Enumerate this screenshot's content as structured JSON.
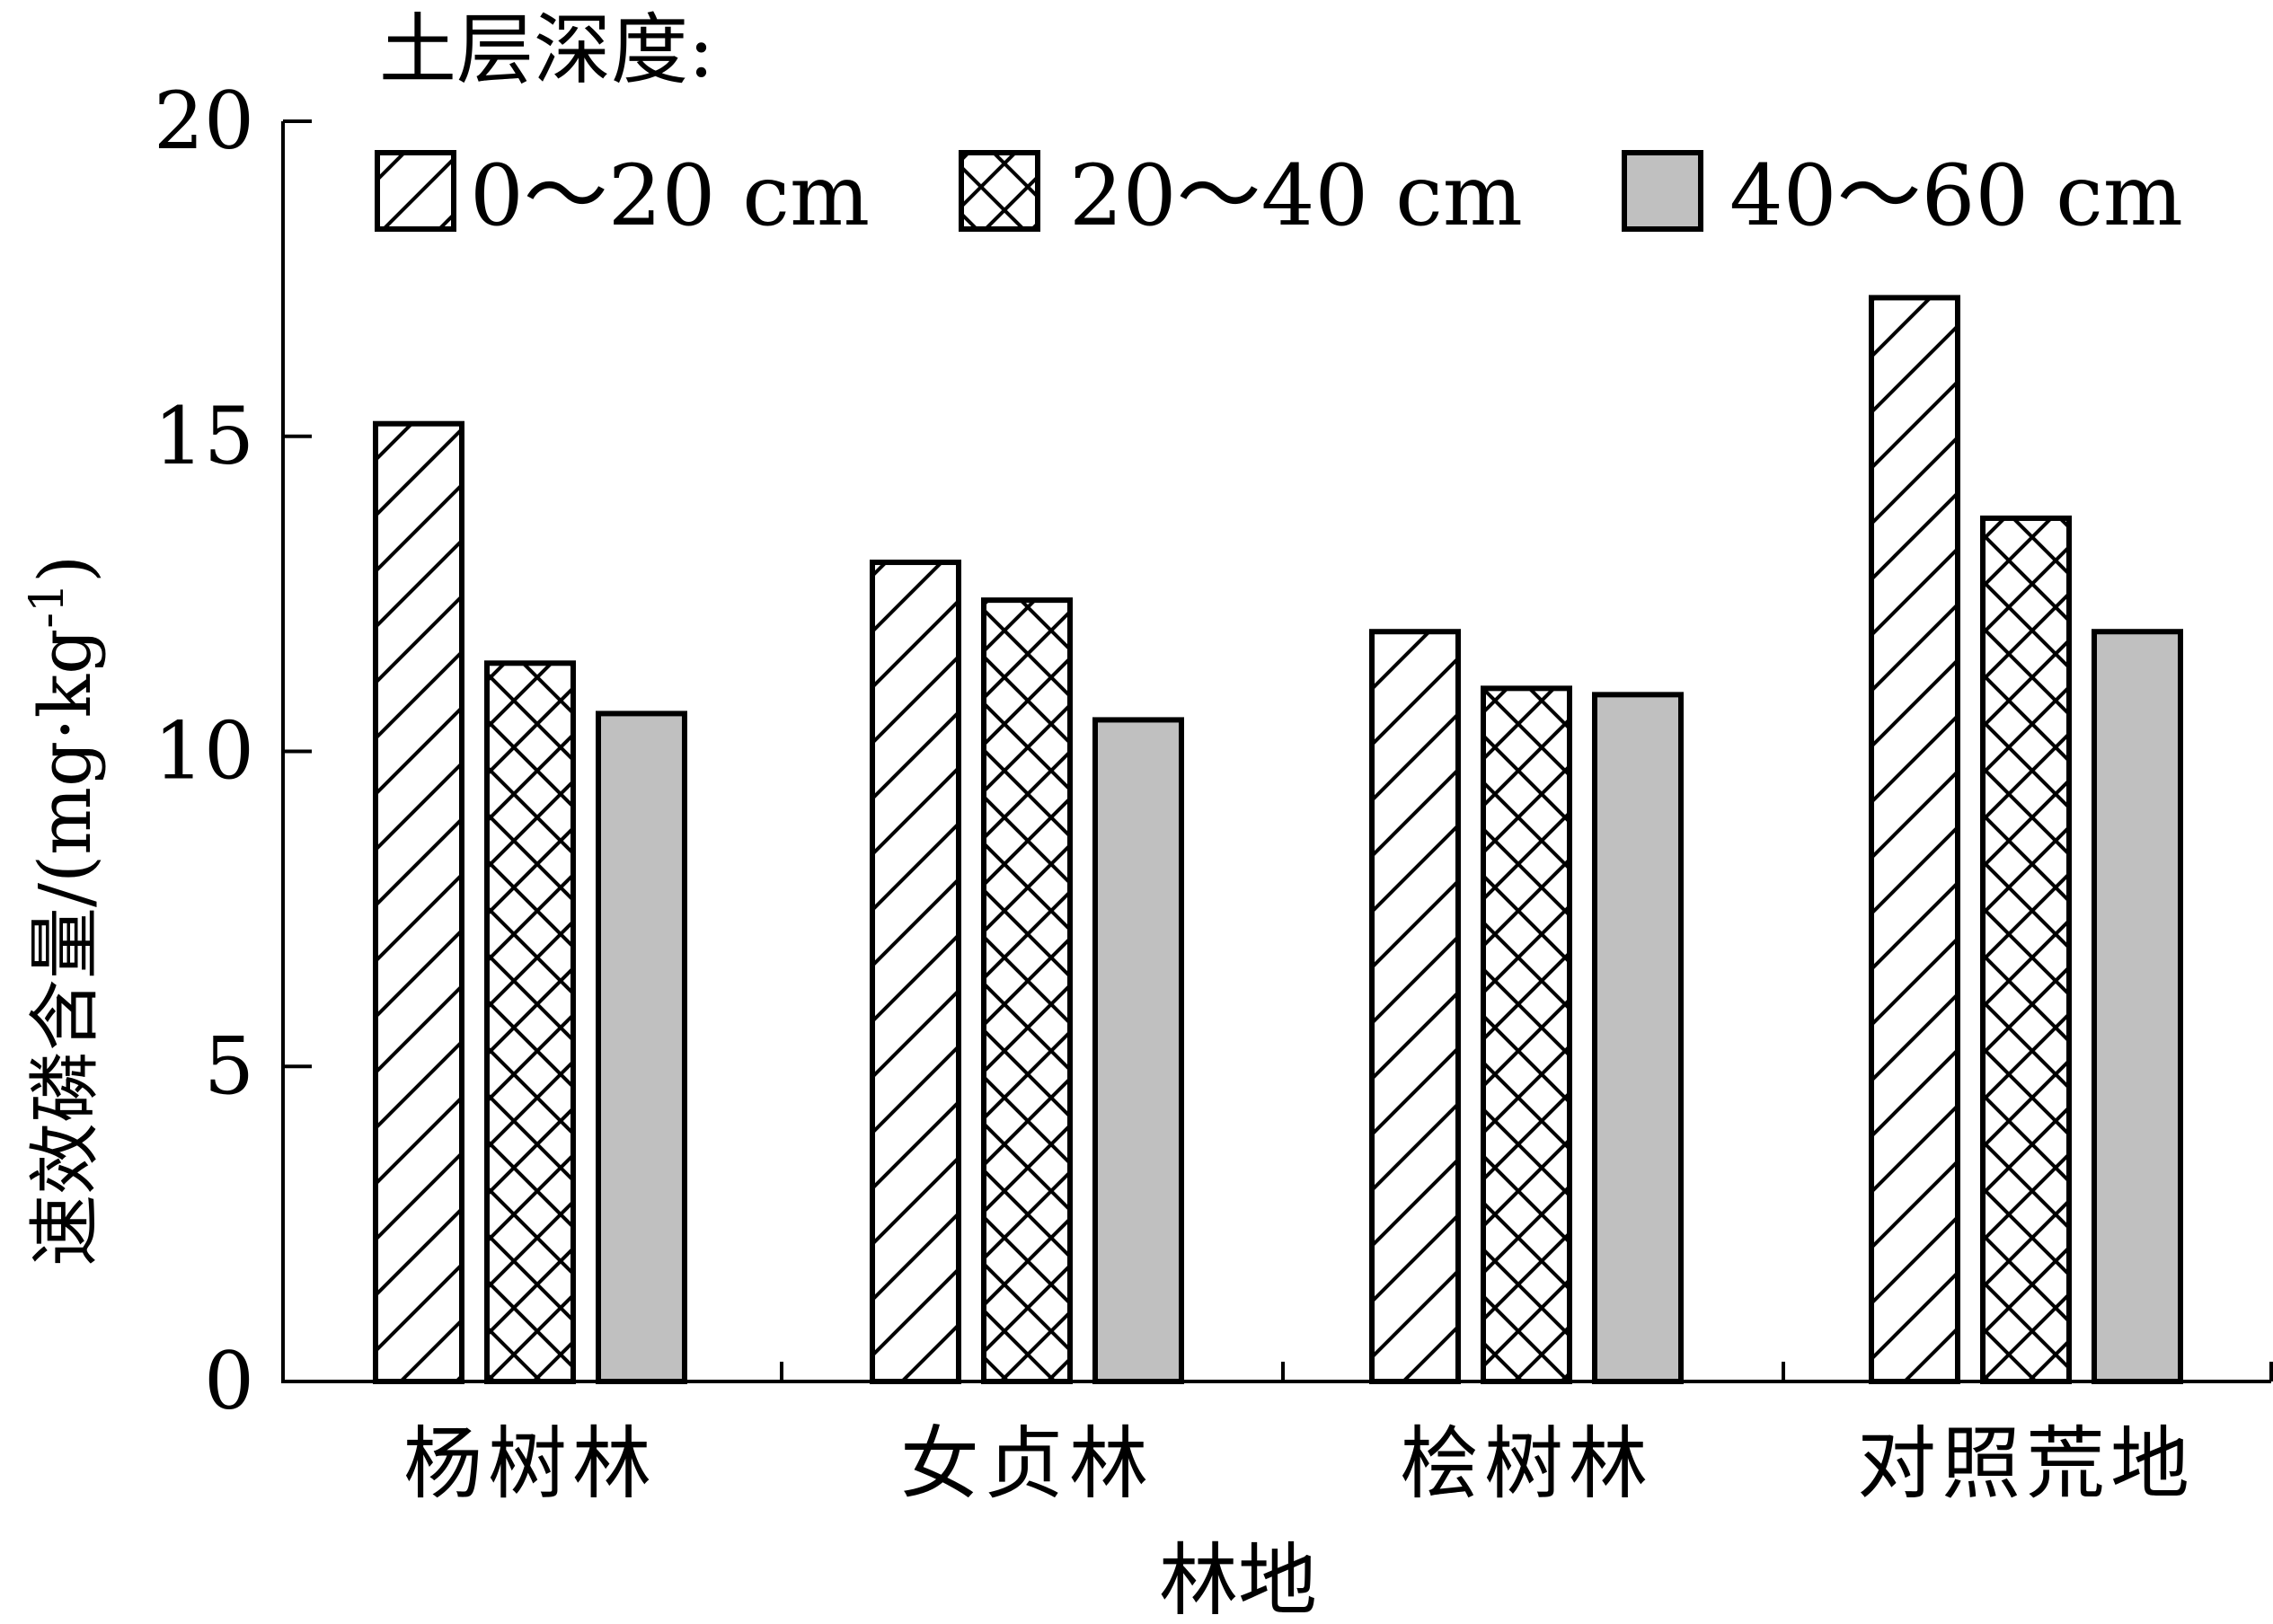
{
  "chart_data": {
    "type": "bar",
    "title": "",
    "xlabel": "林地",
    "ylabel_main": "速效磷含量/(mg·kg",
    "ylabel_sup": "-1",
    "ylabel_close": ")",
    "ylim": [
      0,
      20
    ],
    "yticks": [
      0,
      5,
      10,
      15,
      20
    ],
    "legend_title": "土层深度:",
    "legend_position": "top",
    "categories": [
      "杨树林",
      "女贞林",
      "桧树林",
      "对照荒地"
    ],
    "series": [
      {
        "name": "0～20 cm",
        "pattern": "diagonal",
        "values": [
          15.2,
          13.0,
          11.9,
          17.2
        ]
      },
      {
        "name": "20～40 cm",
        "pattern": "crosshatch",
        "values": [
          11.4,
          12.4,
          11.0,
          13.7
        ]
      },
      {
        "name": "40～60 cm",
        "pattern": "solid-gray",
        "values": [
          10.6,
          10.5,
          10.9,
          11.9
        ]
      }
    ],
    "colors": {
      "stroke": "#000000",
      "gray_fill": "#c0c0c0",
      "background": "#ffffff"
    }
  }
}
